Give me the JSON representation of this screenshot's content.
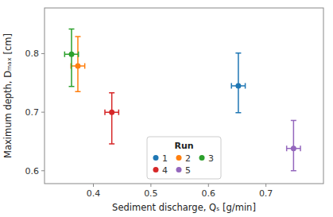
{
  "chart_data": {
    "type": "scatter",
    "xlabel": "Sediment discharge, Qₛ [g/min]",
    "ylabel": "Maximum depth, Dₘₐₓ [cm]",
    "xlim": [
      0.315,
      0.8
    ],
    "ylim": [
      0.578,
      0.878
    ],
    "xticks": [
      0.4,
      0.5,
      0.6,
      0.7
    ],
    "yticks": [
      0.6,
      0.7,
      0.8
    ],
    "grid": false,
    "legend": "lower center",
    "legend_title": "Run",
    "marker": "circle",
    "series": [
      {
        "name": "1",
        "color": "#1f77b4",
        "x": [
          0.652
        ],
        "values": [
          0.745
        ],
        "x_errors": [
          0.012
        ],
        "y_errors_low": [
          0.046
        ],
        "y_errors_high": [
          0.056
        ]
      },
      {
        "name": "2",
        "color": "#ff7f0e",
        "x": [
          0.373
        ],
        "values": [
          0.779
        ],
        "x_errors": [
          0.012
        ],
        "y_errors_low": [
          0.044
        ],
        "y_errors_high": [
          0.05
        ]
      },
      {
        "name": "3",
        "color": "#2ca02c",
        "x": [
          0.362
        ],
        "values": [
          0.799
        ],
        "x_errors": [
          0.012
        ],
        "y_errors_low": [
          0.055
        ],
        "y_errors_high": [
          0.043
        ]
      },
      {
        "name": "4",
        "color": "#d62728",
        "x": [
          0.432
        ],
        "values": [
          0.7
        ],
        "x_errors": [
          0.012
        ],
        "y_errors_low": [
          0.054
        ],
        "y_errors_high": [
          0.033
        ]
      },
      {
        "name": "5",
        "color": "#9467bd",
        "x": [
          0.748
        ],
        "values": [
          0.638
        ],
        "x_errors": [
          0.012
        ],
        "y_errors_low": [
          0.038
        ],
        "y_errors_high": [
          0.048
        ]
      }
    ]
  }
}
